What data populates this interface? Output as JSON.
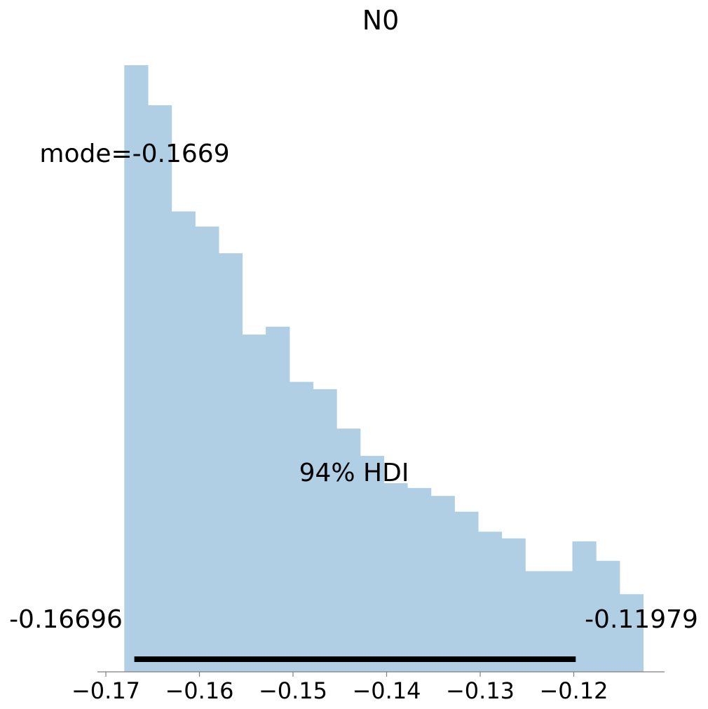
{
  "chart_data": {
    "type": "histogram",
    "title": "N0",
    "xlabel": "",
    "ylabel": "",
    "xlim": [
      -0.1709,
      -0.1103
    ],
    "ylim": [
      0,
      1
    ],
    "x_ticks": [
      -0.17,
      -0.16,
      -0.15,
      -0.14,
      -0.13,
      -0.12
    ],
    "x_tick_labels": [
      "−0.17",
      "−0.16",
      "−0.15",
      "−0.14",
      "−0.13",
      "−0.12"
    ],
    "bin_edges": [
      -0.16803,
      -0.16551,
      -0.16299,
      -0.16047,
      -0.15795,
      -0.15543,
      -0.15291,
      -0.15039,
      -0.14787,
      -0.14535,
      -0.14283,
      -0.14031,
      -0.13779,
      -0.13527,
      -0.13275,
      -0.13023,
      -0.12771,
      -0.12519,
      -0.12267,
      -0.12015,
      -0.11763,
      -0.11511,
      -0.11259
    ],
    "densities": [
      1.0,
      0.934,
      0.759,
      0.734,
      0.69,
      0.556,
      0.569,
      0.478,
      0.466,
      0.401,
      0.356,
      0.311,
      0.303,
      0.29,
      0.264,
      0.231,
      0.22,
      0.166,
      0.166,
      0.215,
      0.183,
      0.128
    ],
    "bar_color": "#b0cfe4",
    "point_estimate": {
      "label": "mode=-0.1669",
      "value": -0.1669
    },
    "hdi": {
      "label": "94% HDI",
      "low": -0.16696,
      "high": -0.11979,
      "low_label": "-0.16696",
      "high_label": "-0.11979",
      "color": "#000000"
    },
    "grid": false,
    "legend": "none"
  }
}
